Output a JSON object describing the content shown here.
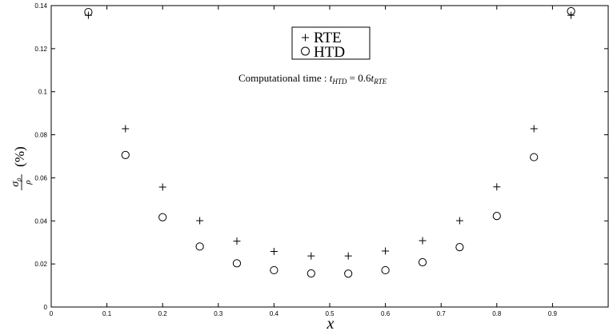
{
  "chart_data": {
    "type": "scatter",
    "xlabel": "x",
    "ylabel_parts": {
      "num": "σ",
      "num_sub": "ρ",
      "den": "ρ",
      "unit": "(%)"
    },
    "xlim": [
      0,
      1
    ],
    "ylim": [
      0,
      0.14
    ],
    "xticks": [
      "0",
      "0.1",
      "0.2",
      "0.3",
      "0.4",
      "0.5",
      "0.6",
      "0.7",
      "0.8",
      "0.9"
    ],
    "yticks": [
      "0",
      "0.02",
      "0.04",
      "0.06",
      "0.08",
      "0.1",
      "0.12",
      "0.14"
    ],
    "grid": false,
    "legend_position": "top-center",
    "annotation": {
      "prefix": "Computational time : ",
      "t1": "t",
      "t1_sub": "HTD",
      "eq": " = 0.6",
      "t2": "t",
      "t2_sub": "RTE"
    },
    "series": [
      {
        "name": "RTE",
        "marker": "+",
        "x": [
          0.0667,
          0.1333,
          0.2,
          0.2667,
          0.3333,
          0.4,
          0.4667,
          0.5333,
          0.6,
          0.6667,
          0.7333,
          0.8,
          0.8667,
          0.9333
        ],
        "y": [
          0.1355,
          0.0828,
          0.0557,
          0.0401,
          0.0306,
          0.0258,
          0.0237,
          0.0237,
          0.026,
          0.0308,
          0.0401,
          0.0558,
          0.0828,
          0.1355
        ]
      },
      {
        "name": "HTD",
        "marker": "o",
        "x": [
          0.0667,
          0.1333,
          0.2,
          0.2667,
          0.3333,
          0.4,
          0.4667,
          0.5333,
          0.6,
          0.6667,
          0.7333,
          0.8,
          0.8667,
          0.9333
        ],
        "y": [
          0.137,
          0.0706,
          0.0417,
          0.0281,
          0.0203,
          0.0171,
          0.0156,
          0.0155,
          0.0171,
          0.0208,
          0.0278,
          0.0423,
          0.0696,
          0.1374
        ]
      }
    ]
  }
}
